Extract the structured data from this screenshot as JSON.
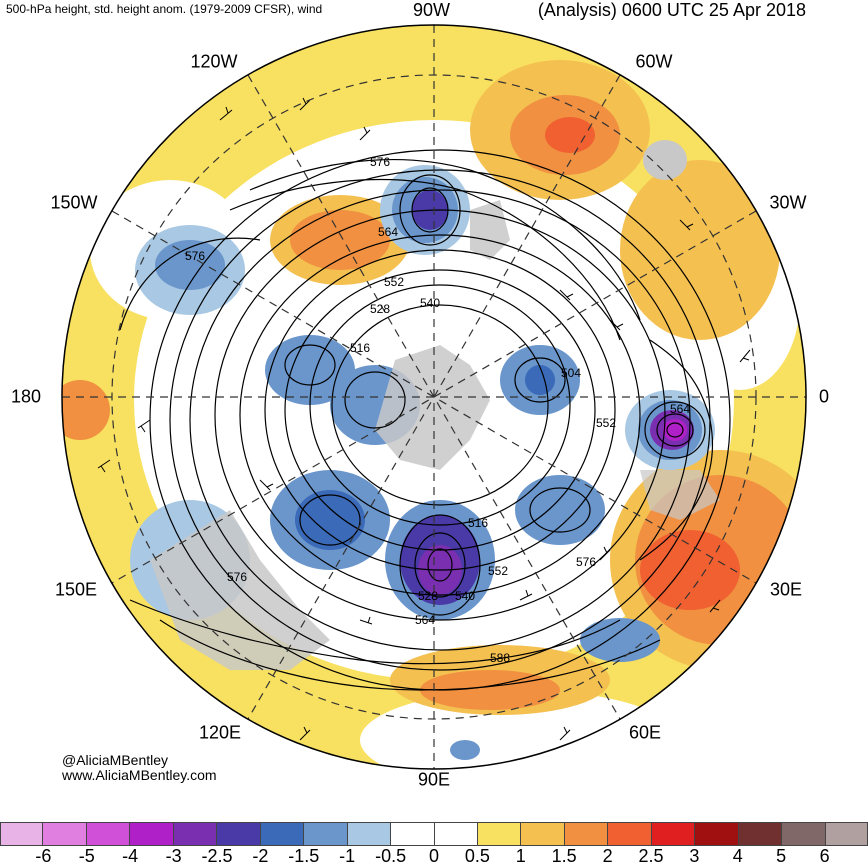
{
  "header": {
    "subtitle": "500-hPa height, std. height anom. (1979-2009 CFSR), wind",
    "title": "(Analysis) 0600 UTC 25 Apr 2018"
  },
  "longitude_labels": {
    "w90": "90W",
    "w60": "60W",
    "w30": "30W",
    "zero": "0",
    "e30": "30E",
    "e60": "60E",
    "e90": "90E",
    "e120": "120E",
    "e150": "150E",
    "d180": "180",
    "w150": "150W",
    "w120": "120W"
  },
  "contour_labels": [
    "576",
    "564",
    "552",
    "540",
    "528",
    "516",
    "504",
    "552",
    "564",
    "516",
    "528",
    "540",
    "552",
    "564",
    "576",
    "576",
    "576",
    "588"
  ],
  "credit": {
    "handle": "@AliciaMBentley",
    "url": "www.AliciaMBentley.com"
  },
  "colorbar": {
    "ticks": [
      "-6",
      "-5",
      "-4",
      "-3",
      "-2.5",
      "-2",
      "-1.5",
      "-1",
      "-0.5",
      "0",
      "0.5",
      "1",
      "1.5",
      "2",
      "2.5",
      "3",
      "4",
      "5",
      "6"
    ],
    "colors": [
      "#e8b4e8",
      "#e07fe0",
      "#d050d8",
      "#b020c8",
      "#7a2fb0",
      "#4a3aa8",
      "#3a6ab8",
      "#6a96cc",
      "#a8c8e4",
      "#ffffff",
      "#ffffff",
      "#f8e060",
      "#f4c050",
      "#f09040",
      "#f06030",
      "#e02020",
      "#a01010",
      "#703030",
      "#806868",
      "#b0a0a0"
    ]
  },
  "legend_colors": {
    "land": "#c8c8c8",
    "contour": "#000000"
  }
}
